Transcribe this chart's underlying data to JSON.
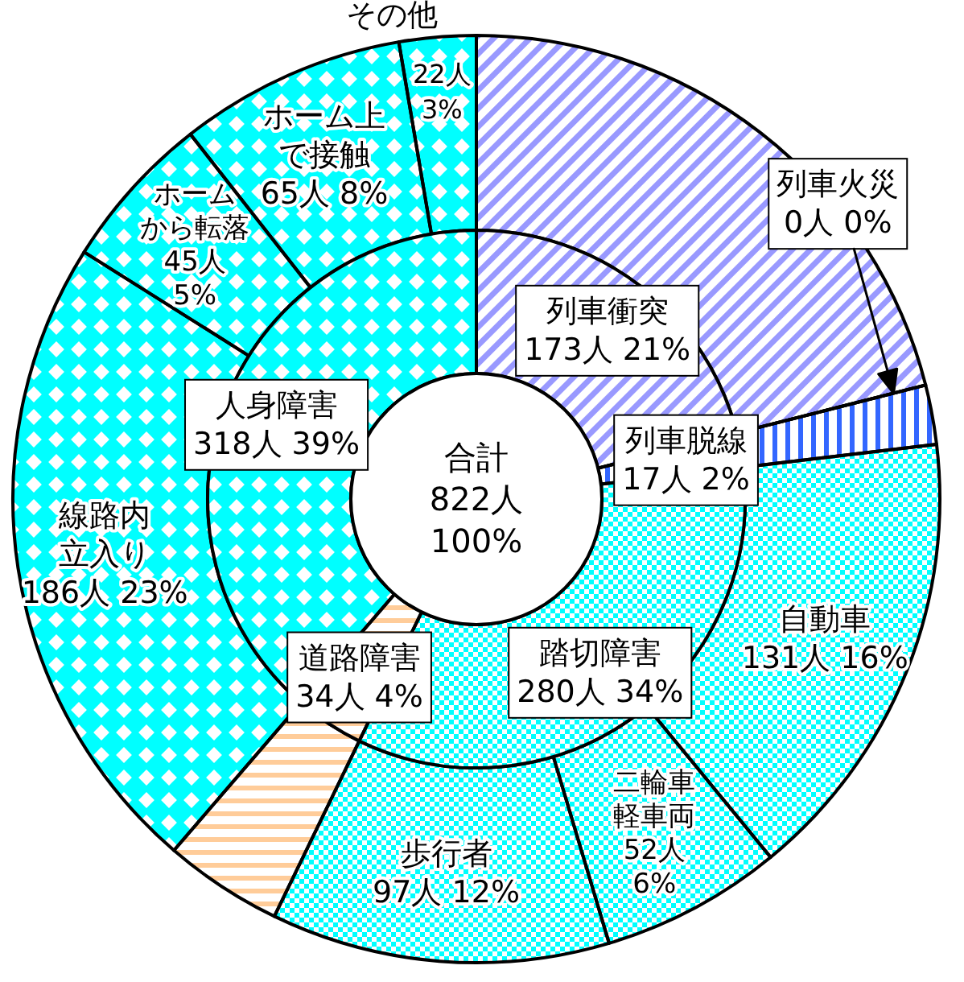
{
  "chart_data": [
    {
      "type": "donut",
      "categories": [
        null,
        null,
        null,
        "自動車",
        "二輪車軽車両",
        "歩行者",
        null,
        "線路内立入り",
        "ホームから転落",
        "ホーム上で接触",
        "その他"
      ],
      "values": [
        173,
        0,
        17,
        131,
        52,
        97,
        34,
        186,
        45,
        65,
        22
      ],
      "value_labels": [
        null,
        null,
        null,
        "131人 16%",
        "52人 6%",
        "97人 12%",
        null,
        "186人 23%",
        "45人 5%",
        "65人 8%",
        "22人 3%"
      ],
      "colors": [
        "#9999ff",
        "#ffffff",
        "#3366ff",
        "#00ffff",
        "#00ffff",
        "#00ffff",
        "#ffcc99",
        "#00ffff",
        "#00ffff",
        "#00ffff",
        "#00ffff"
      ]
    },
    {
      "type": "donut",
      "title": "合計",
      "annotations": [
        "822人",
        "100%"
      ],
      "categories": [
        "列車衝突",
        "列車火災",
        "列車脱線",
        "踏切障害",
        "道路障害",
        "人身障害"
      ],
      "values": [
        173,
        0,
        17,
        280,
        34,
        318
      ],
      "value_labels": [
        "173人 21%",
        "0人 0%",
        "17人 2%",
        "280人 34%",
        "34人 4%",
        "318人 39%"
      ],
      "colors": [
        "#9999ff",
        "#ffffff",
        "#3366ff",
        "#00ffff",
        "#ffcc99",
        "#00ffff"
      ]
    }
  ]
}
